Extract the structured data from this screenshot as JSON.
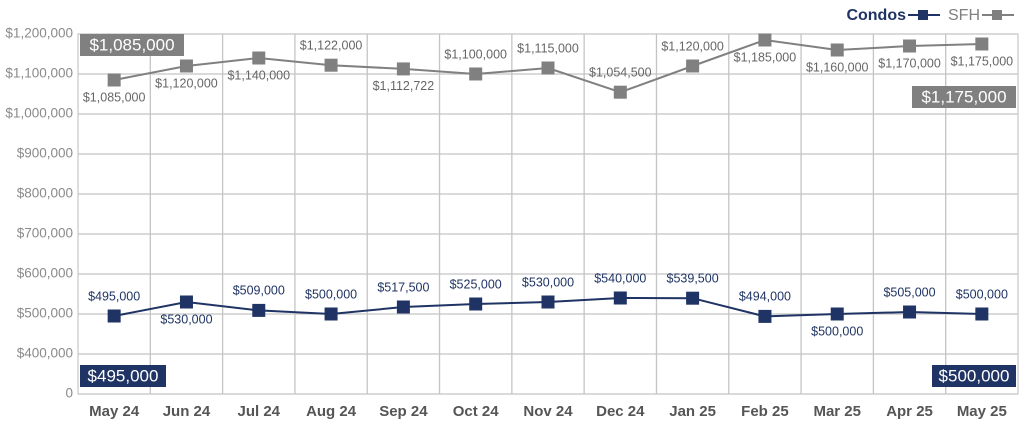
{
  "chart_data": {
    "type": "line",
    "categories": [
      "May 24",
      "Jun 24",
      "Jul 24",
      "Aug 24",
      "Sep 24",
      "Oct 24",
      "Nov 24",
      "Dec 24",
      "Jan 25",
      "Feb 25",
      "Mar 25",
      "Apr 25",
      "May 25"
    ],
    "series": [
      {
        "name": "Condos",
        "color": "#1f3464",
        "values": [
          495000,
          530000,
          509000,
          500000,
          517500,
          525000,
          530000,
          540000,
          539500,
          494000,
          500000,
          505000,
          500000
        ],
        "value_labels": [
          "$495,000",
          "$530,000",
          "$509,000",
          "$500,000",
          "$517,500",
          "$525,000",
          "$530,000",
          "$540,000",
          "$539,500",
          "$494,000",
          "$500,000",
          "$505,000",
          "$500,000"
        ]
      },
      {
        "name": "SFH",
        "color": "#808080",
        "values": [
          1085000,
          1120000,
          1140000,
          1122000,
          1112722,
          1100000,
          1115000,
          1054500,
          1120000,
          1185000,
          1160000,
          1170000,
          1175000
        ],
        "value_labels": [
          "$1,085,000",
          "$1,120,000",
          "$1,140,000",
          "$1,122,000",
          "$1,112,722",
          "$1,100,000",
          "$1,115,000",
          "$1,054,500",
          "$1,120,000",
          "$1,185,000",
          "$1,160,000",
          "$1,170,000",
          "$1,175,000"
        ]
      }
    ],
    "ylim": [
      0,
      1200000
    ],
    "yticks": [
      0,
      {
        "value": 400000,
        "label": "$400,000"
      },
      {
        "value": 500000,
        "label": "$500,000"
      },
      {
        "value": 600000,
        "label": "$600,000"
      },
      {
        "value": 700000,
        "label": "$700,000"
      },
      {
        "value": 800000,
        "label": "$800,000"
      },
      {
        "value": 900000,
        "label": "$900,000"
      },
      {
        "value": 1000000,
        "label": "$1,000,000"
      },
      {
        "value": 1100000,
        "label": "$1,100,000"
      },
      {
        "value": 1200000,
        "label": "$1,200,000"
      }
    ],
    "grid": true,
    "legend": "top-right"
  }
}
